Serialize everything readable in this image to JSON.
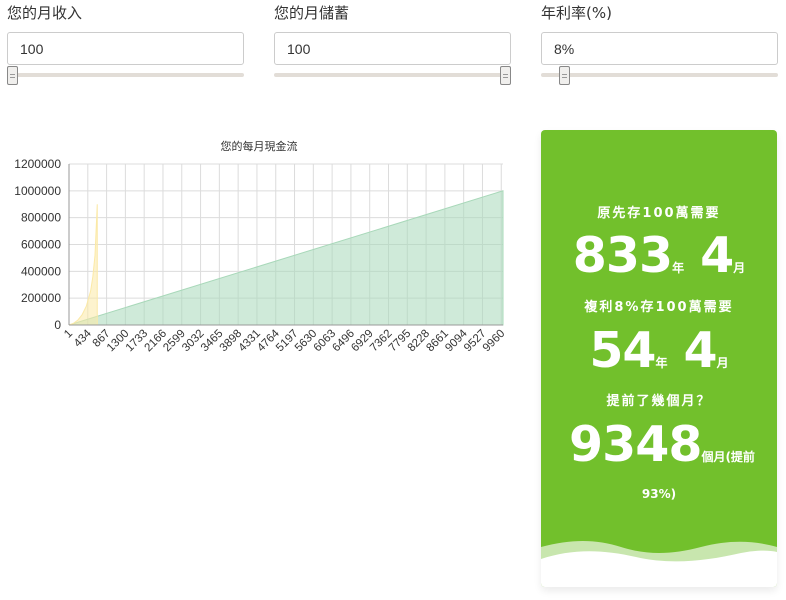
{
  "form": {
    "income_label": "您的月收入",
    "income_value": "100",
    "savings_label": "您的月儲蓄",
    "savings_value": "100",
    "rate_label": "年利率(%)",
    "rate_value": "8%"
  },
  "chart_data": {
    "type": "area",
    "title": "您的每月現金流",
    "xlabel": "",
    "ylabel": "",
    "ylim": [
      0,
      1200000
    ],
    "xlim": [
      1,
      10000
    ],
    "yticks": [
      "0",
      "200000",
      "400000",
      "600000",
      "800000",
      "1000000",
      "1200000"
    ],
    "xticks": [
      "1",
      "434",
      "867",
      "1300",
      "1733",
      "2166",
      "2599",
      "3032",
      "3465",
      "3898",
      "4331",
      "4764",
      "5197",
      "5630",
      "6063",
      "6496",
      "6929",
      "7362",
      "7795",
      "8228",
      "8661",
      "9094",
      "9527",
      "9960"
    ],
    "grid": true,
    "series": [
      {
        "color": "#a8d8b9",
        "x": [
          1,
          10000
        ],
        "values": [
          0,
          1000000
        ]
      },
      {
        "color": "#fbe9a6",
        "x": [
          1,
          100,
          200,
          300,
          400,
          500,
          550,
          600,
          652
        ],
        "values": [
          0,
          12000,
          35000,
          75000,
          140000,
          255000,
          360000,
          520000,
          900000
        ]
      }
    ]
  },
  "result": {
    "line1": "原先存100萬需要",
    "years1": "833",
    "years_unit": "年",
    "months1": "4",
    "months_unit": "月",
    "line2": "複利8%存100萬需要",
    "years2": "54",
    "months2": "4",
    "line3": "提前了幾個月？",
    "months_earlier": "9348",
    "earlier_suffix": "個月(提前",
    "percent": "93%)"
  },
  "colors": {
    "panel": "#72c02c",
    "wave_light": "#c8e6ae",
    "wave_white": "#ffffff"
  }
}
